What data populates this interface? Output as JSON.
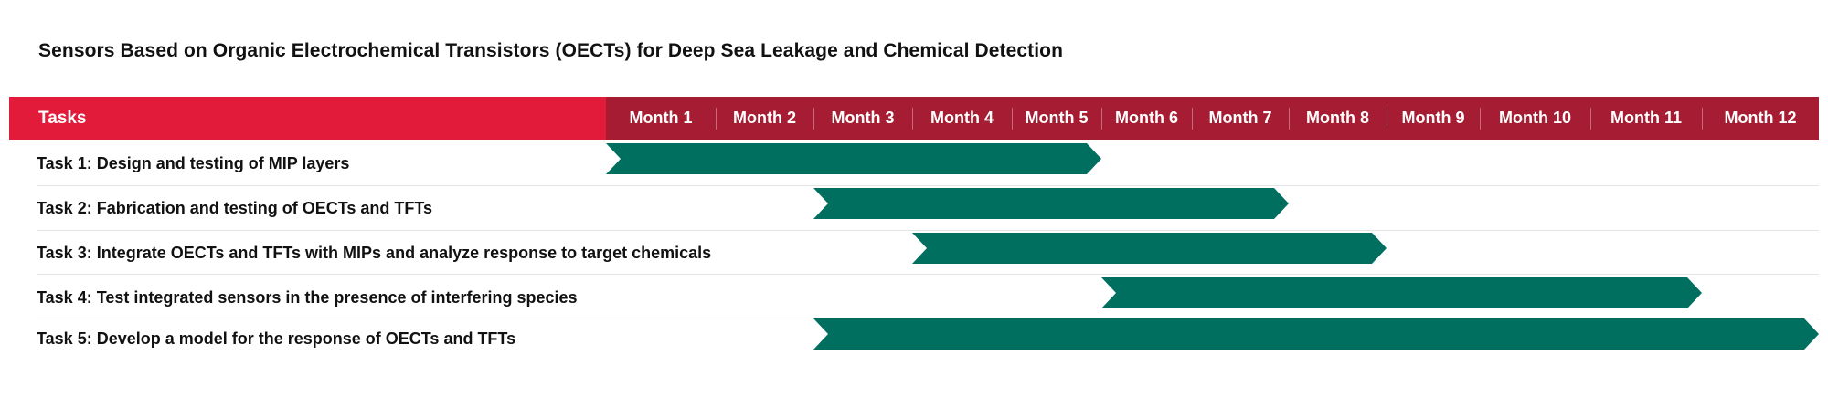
{
  "title": "Sensors Based on Organic Electrochemical Transistors (OECTs) for Deep Sea Leakage and Chemical Detection",
  "colors": {
    "tasks_header": "#e21b3a",
    "months_header": "#a61d33",
    "bar": "#006f5f"
  },
  "header": {
    "tasks_label": "Tasks",
    "months": [
      "Month 1",
      "Month 2",
      "Month 3",
      "Month 4",
      "Month 5",
      "Month 6",
      "Month 7",
      "Month 8",
      "Month 9",
      "Month 10",
      "Month 11",
      "Month 12"
    ]
  },
  "tasks": [
    {
      "label": "Task 1: Design and testing of MIP layers",
      "start_month": 1,
      "end_month": 5.0
    },
    {
      "label": "Task 2: Fabrication and testing of OECTs and TFTs",
      "start_month": 3,
      "end_month": 7.0
    },
    {
      "label": "Task 3: Integrate OECTs and TFTs with MIPs and analyze response to target chemicals",
      "start_month": 4,
      "end_month": 8.0
    },
    {
      "label": "Task 4: Test integrated sensors in the presence of interfering species",
      "start_month": 6,
      "end_month": 11.0
    },
    {
      "label": "Task 5: Develop a model for the response of OECTs and TFTs",
      "start_month": 3,
      "end_month": 12.0
    }
  ]
}
